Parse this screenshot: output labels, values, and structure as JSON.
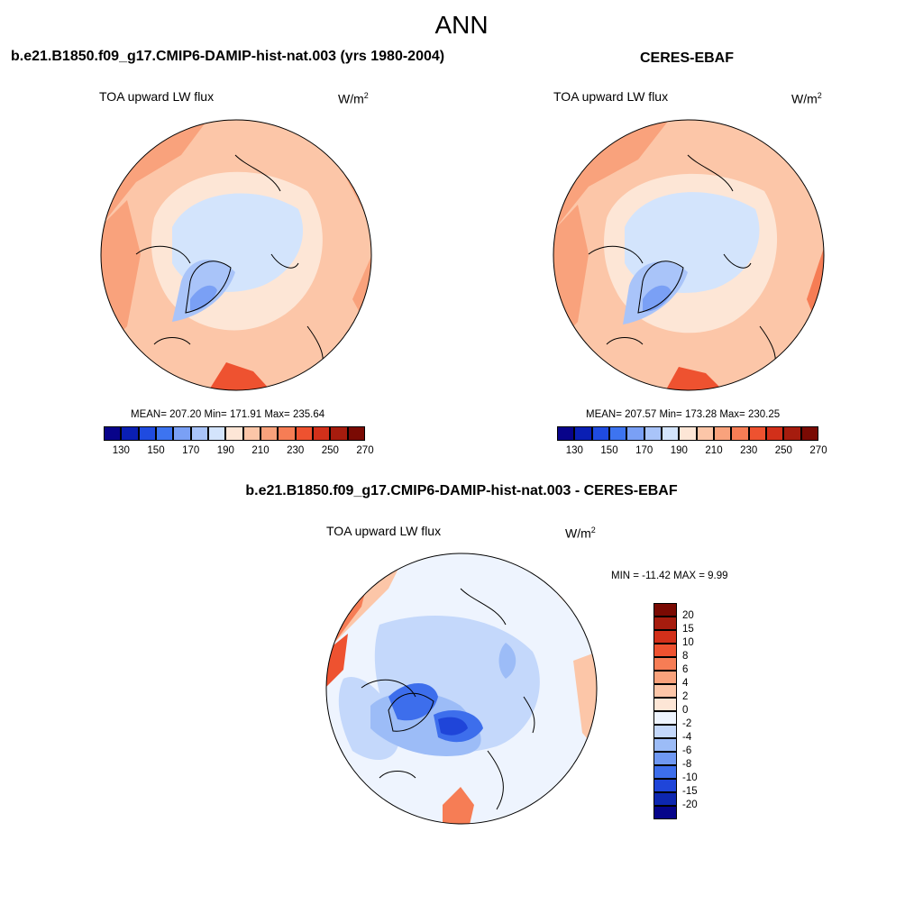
{
  "title": "ANN",
  "panels": [
    {
      "title": "b.e21.B1850.f09_g17.CMIP6-DAMIP-hist-nat.003 (yrs 1980-2004)",
      "variable": "TOA upward LW flux",
      "units_base": "W/m",
      "units_exp": "2",
      "stats": "MEAN= 207.20  Min= 171.91  Max= 235.64"
    },
    {
      "title": "CERES-EBAF",
      "variable": "TOA upward LW flux",
      "units_base": "W/m",
      "units_exp": "2",
      "stats": "MEAN= 207.57  Min= 173.28  Max= 230.25"
    },
    {
      "title": "b.e21.B1850.f09_g17.CMIP6-DAMIP-hist-nat.003 - CERES-EBAF",
      "variable": "TOA upward LW flux",
      "units_base": "W/m",
      "units_exp": "2",
      "stats": "MIN = -11.42 MAX =   9.99"
    }
  ],
  "colorbar_abs": {
    "labels": [
      "130",
      "150",
      "170",
      "190",
      "210",
      "230",
      "250",
      "270"
    ],
    "colors": [
      "#08038a",
      "#0a1fb4",
      "#1f4be0",
      "#3d74f0",
      "#7aa0f5",
      "#a9c4f9",
      "#d3e4fc",
      "#fde6d6",
      "#fcc6a8",
      "#f9a27c",
      "#f67d55",
      "#ee5230",
      "#d2301a",
      "#a61c0e",
      "#7a0a03"
    ]
  },
  "colorbar_diff": {
    "labels": [
      "20",
      "15",
      "10",
      "8",
      "6",
      "4",
      "2",
      "0",
      "-2",
      "-4",
      "-6",
      "-8",
      "-10",
      "-15",
      "-20"
    ],
    "colors": [
      "#7a0a03",
      "#a61c0e",
      "#d2301a",
      "#ee5230",
      "#f67d55",
      "#f9a27c",
      "#fcc6a8",
      "#fde6d6",
      "#eef4fe",
      "#c4d8fb",
      "#9cbcf7",
      "#6f98f2",
      "#3d6eec",
      "#1f45d9",
      "#0d27b0",
      "#06058a"
    ]
  }
}
